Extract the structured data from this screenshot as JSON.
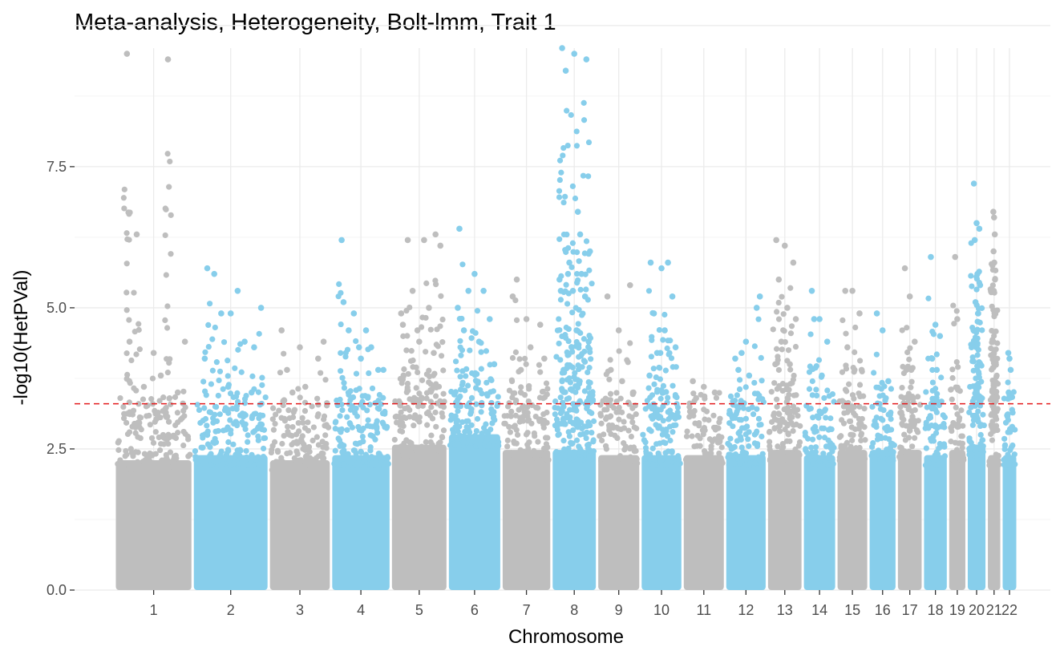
{
  "chart_data": {
    "type": "scatter",
    "subtype": "manhattan",
    "title": "Meta-analysis, Heterogeneity, Bolt-lmm, Trait 1",
    "xlabel": "Chromosome",
    "ylabel": "-log10(HetPVal)",
    "ylim": [
      0,
      9.6
    ],
    "yticks": [
      0.0,
      2.5,
      5.0,
      7.5
    ],
    "ytick_labels": [
      "0.0",
      "2.5",
      "5.0",
      "7.5"
    ],
    "threshold": 3.3,
    "colors": {
      "odd": "#bebebe",
      "even": "#87ceeb",
      "threshold": "#e41a1c"
    },
    "grid": true,
    "legend": "none",
    "chromosomes": [
      {
        "label": "1",
        "start": 0,
        "end": 248,
        "bulk": 2.5,
        "peaks": [
          4.4,
          4.2,
          3.5,
          6.3,
          3.8,
          4.4,
          3.6,
          9.4,
          9.5
        ]
      },
      {
        "label": "2",
        "start": 248,
        "end": 490,
        "bulk": 2.6,
        "peaks": [
          5.7,
          4.9,
          4.3,
          5.6,
          5.3,
          5.0,
          4.9,
          4.4,
          4.1,
          3.6,
          3.5
        ]
      },
      {
        "label": "3",
        "start": 490,
        "end": 688,
        "bulk": 2.5,
        "peaks": [
          4.6,
          4.3,
          4.1,
          3.9,
          3.6,
          4.4,
          3.5
        ]
      },
      {
        "label": "4",
        "start": 688,
        "end": 878,
        "bulk": 2.6,
        "peaks": [
          5.1,
          4.1,
          3.9,
          4.6,
          4.6,
          3.9,
          4.9,
          4.3,
          6.2,
          4.3
        ]
      },
      {
        "label": "5",
        "start": 878,
        "end": 1059,
        "bulk": 2.8,
        "peaks": [
          4.7,
          4.4,
          6.3,
          6.2,
          6.2,
          6.1,
          5.3,
          5.0,
          4.9,
          4.6,
          4.2
        ]
      },
      {
        "label": "6",
        "start": 1059,
        "end": 1230,
        "bulk": 3.0,
        "peaks": [
          6.4,
          5.6,
          4.8,
          4.6,
          4.4,
          4.0,
          5.3,
          5.3,
          5.0
        ]
      },
      {
        "label": "7",
        "start": 1230,
        "end": 1389,
        "bulk": 2.7,
        "peaks": [
          5.2,
          4.8,
          4.7,
          5.5,
          4.3,
          4.1,
          3.9
        ]
      },
      {
        "label": "8",
        "start": 1389,
        "end": 1534,
        "bulk": 2.7,
        "peaks": [
          9.6,
          9.5,
          9.4,
          9.2,
          6.7,
          6.0,
          5.8,
          5.6,
          5.3,
          5.3,
          5.2,
          4.5,
          4.6,
          4.4,
          5.6,
          6.3,
          5.5,
          4.3
        ]
      },
      {
        "label": "9",
        "start": 1534,
        "end": 1672,
        "bulk": 2.6,
        "peaks": [
          5.2,
          4.6,
          5.4,
          3.9,
          3.7,
          3.5
        ]
      },
      {
        "label": "10",
        "start": 1672,
        "end": 1806,
        "bulk": 2.6,
        "peaks": [
          5.8,
          5.7,
          5.2,
          4.9,
          4.6,
          4.3,
          4.2,
          5.8,
          3.8,
          4.2
        ]
      },
      {
        "label": "11",
        "start": 1806,
        "end": 1941,
        "bulk": 2.6,
        "peaks": [
          3.7,
          3.6,
          3.5,
          3.4
        ]
      },
      {
        "label": "12",
        "start": 1941,
        "end": 2074,
        "bulk": 2.6,
        "peaks": [
          4.1,
          4.4,
          5.0,
          3.9,
          3.8,
          5.2,
          4.2
        ]
      },
      {
        "label": "13",
        "start": 2074,
        "end": 2188,
        "bulk": 2.7,
        "peaks": [
          6.2,
          6.1,
          5.8,
          5.5,
          5.0,
          4.8,
          4.4,
          4.0,
          4.0
        ]
      },
      {
        "label": "14",
        "start": 2188,
        "end": 2295,
        "bulk": 2.6,
        "peaks": [
          5.3,
          4.8,
          4.4,
          4.8,
          3.8
        ]
      },
      {
        "label": "15",
        "start": 2295,
        "end": 2397,
        "bulk": 2.7,
        "peaks": [
          5.3,
          5.3,
          4.9,
          4.3,
          3.9,
          3.9
        ]
      },
      {
        "label": "16",
        "start": 2397,
        "end": 2487,
        "bulk": 2.7,
        "peaks": [
          4.9,
          4.6,
          3.7
        ]
      },
      {
        "label": "17",
        "start": 2487,
        "end": 2570,
        "bulk": 2.7,
        "peaks": [
          5.7,
          5.2,
          4.4,
          3.9,
          3.9
        ]
      },
      {
        "label": "18",
        "start": 2570,
        "end": 2650,
        "bulk": 2.6,
        "peaks": [
          5.9,
          4.7,
          4.5,
          4.1,
          3.9
        ]
      },
      {
        "label": "19",
        "start": 2650,
        "end": 2709,
        "bulk": 2.7,
        "peaks": [
          5.9,
          4.8
        ]
      },
      {
        "label": "20",
        "start": 2709,
        "end": 2773,
        "bulk": 2.8,
        "peaks": [
          7.2,
          6.5,
          6.4,
          6.2,
          5.6,
          5.4,
          5.1,
          4.9,
          4.6,
          4.3
        ]
      },
      {
        "label": "21",
        "start": 2773,
        "end": 2820,
        "bulk": 2.6,
        "peaks": [
          6.7,
          6.6,
          6.3,
          6.0,
          5.8,
          5.5,
          5.3,
          4.9,
          4.4,
          4.2
        ]
      },
      {
        "label": "22",
        "start": 2820,
        "end": 2871,
        "bulk": 2.6,
        "peaks": [
          4.2,
          4.1,
          3.9,
          3.5
        ]
      }
    ]
  }
}
